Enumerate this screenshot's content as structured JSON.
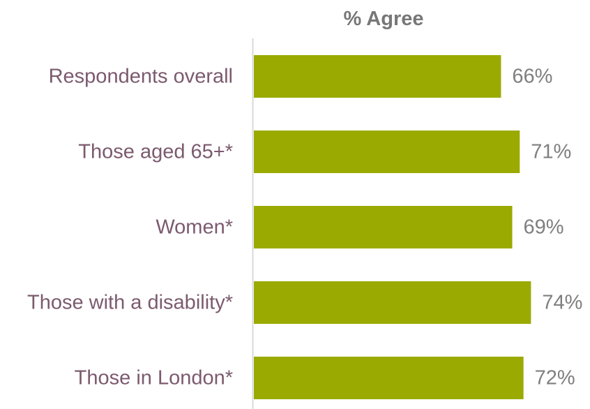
{
  "chart_data": {
    "type": "bar",
    "orientation": "horizontal",
    "title": "% Agree",
    "categories": [
      "Respondents overall",
      "Those aged 65+*",
      "Women*",
      "Those with a disability*",
      "Those in London*"
    ],
    "values": [
      66,
      71,
      69,
      74,
      72
    ],
    "value_labels": [
      "66%",
      "71%",
      "69%",
      "74%",
      "72%"
    ],
    "xlim": [
      0,
      100
    ],
    "grid": false,
    "legend": "none",
    "colors": {
      "bar": "#9aaa00",
      "category_text": "#7b5a6e",
      "value_text": "#7f7f7f",
      "title_text": "#777777",
      "axis_line": "#d9d9d9"
    }
  }
}
